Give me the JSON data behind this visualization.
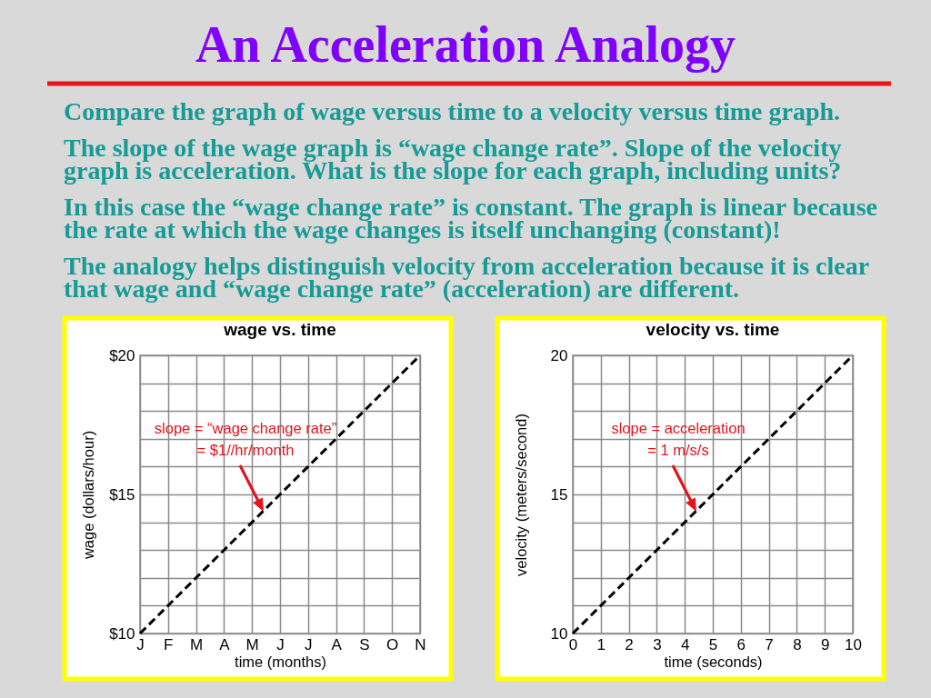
{
  "chart_data": [
    {
      "type": "other",
      "title": "An Acceleration Analogy",
      "annotations": [
        "Compare the graph of wage versus time to a velocity versus time graph.",
        "The slope of the wage graph is “wage change rate”. Slope of the velocity\ngraph is acceleration. What is the slope for each graph, including units?",
        "In this case the “wage change rate” is constant. The graph is linear because\nthe rate at which the wage changes is itself unchanging (constant)!",
        "The analogy helps distinguish velocity from acceleration because it is clear\nthat wage and “wage change rate” (acceleration) are different."
      ]
    },
    {
      "type": "line",
      "title": "wage vs. time",
      "xlabel": "time (months)",
      "ylabel": "wage (dollars/hour)",
      "categories": [
        "J",
        "F",
        "M",
        "A",
        "M",
        "J",
        "J",
        "A",
        "S",
        "O",
        "N"
      ],
      "series": [
        {
          "color": "#000000",
          "values": [
            10,
            11,
            12,
            13,
            14,
            15,
            16,
            17,
            18,
            19,
            20
          ]
        }
      ],
      "ylim": [
        10,
        20
      ],
      "yticks": [
        {
          "value": 10,
          "label": "$10"
        },
        {
          "value": 11,
          "label": null
        },
        {
          "value": 12,
          "label": null
        },
        {
          "value": 13,
          "label": null
        },
        {
          "value": 14,
          "label": null
        },
        {
          "value": 15,
          "label": "$15"
        },
        {
          "value": 16,
          "label": null
        },
        {
          "value": 17,
          "label": null
        },
        {
          "value": 18,
          "label": null
        },
        {
          "value": 19,
          "label": null
        },
        {
          "value": 20,
          "label": "$20"
        }
      ],
      "grid": true,
      "line_style": "dashed",
      "marker": "none",
      "annotations": [
        "slope = “wage change rate”\n= $1//hr/month"
      ]
    },
    {
      "type": "line",
      "title": "velocity vs. time",
      "xlabel": "time (seconds)",
      "ylabel": "velocity (meters/second)",
      "x": [
        0,
        1,
        2,
        3,
        4,
        5,
        6,
        7,
        8,
        9,
        10
      ],
      "series": [
        {
          "color": "#000000",
          "values": [
            10,
            11,
            12,
            13,
            14,
            15,
            16,
            17,
            18,
            19,
            20
          ]
        }
      ],
      "xlim": [
        0,
        10
      ],
      "xticks": [
        0,
        1,
        2,
        3,
        4,
        5,
        6,
        7,
        8,
        9,
        10
      ],
      "ylim": [
        10,
        20
      ],
      "yticks": [
        10,
        {
          "value": 11,
          "label": null
        },
        {
          "value": 12,
          "label": null
        },
        {
          "value": 13,
          "label": null
        },
        {
          "value": 14,
          "label": null
        },
        15,
        {
          "value": 16,
          "label": null
        },
        {
          "value": 17,
          "label": null
        },
        {
          "value": 18,
          "label": null
        },
        {
          "value": 19,
          "label": null
        },
        20
      ],
      "grid": true,
      "line_style": "dashed",
      "marker": "none",
      "annotations": [
        "slope = acceleration\n= 1 m/s/s"
      ]
    }
  ]
}
